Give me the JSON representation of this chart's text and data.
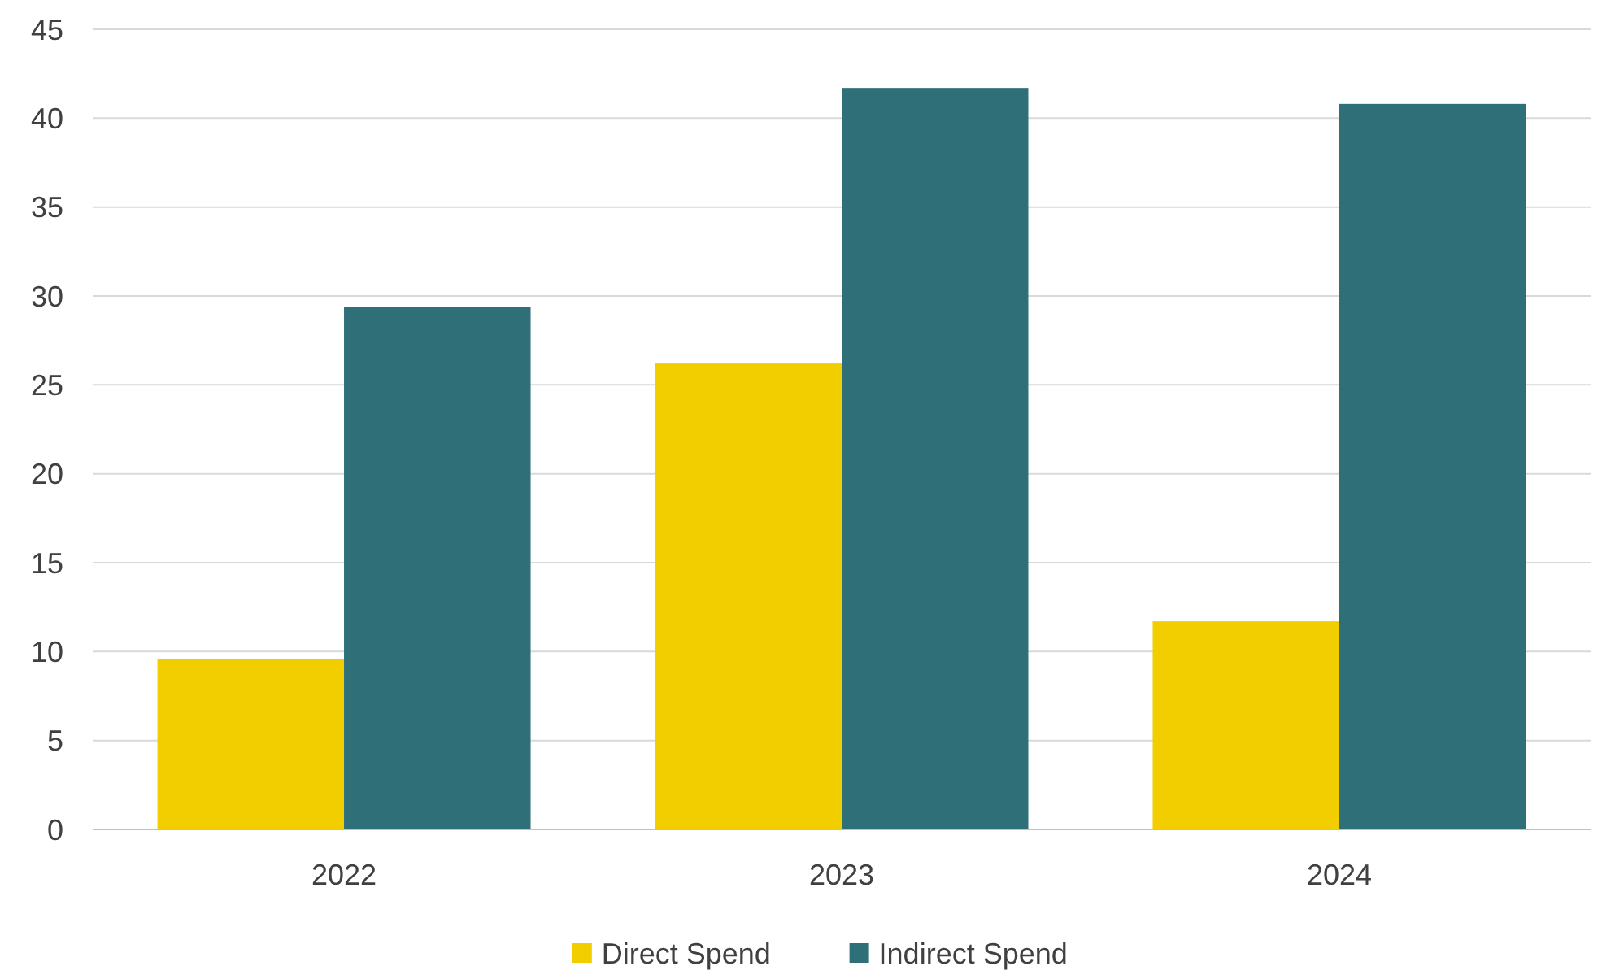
{
  "chart_data": {
    "type": "bar",
    "categories": [
      "2022",
      "2023",
      "2024"
    ],
    "series": [
      {
        "name": "Direct Spend",
        "color": "#f2cd00",
        "values": [
          9.6,
          26.2,
          11.7
        ]
      },
      {
        "name": "Indirect Spend",
        "color": "#2e6f78",
        "values": [
          29.4,
          41.7,
          40.8
        ]
      }
    ],
    "ylim": [
      0,
      45
    ],
    "yticks": [
      0,
      5,
      10,
      15,
      20,
      25,
      30,
      35,
      40,
      45
    ],
    "grid": "y",
    "legend": "bottom"
  }
}
